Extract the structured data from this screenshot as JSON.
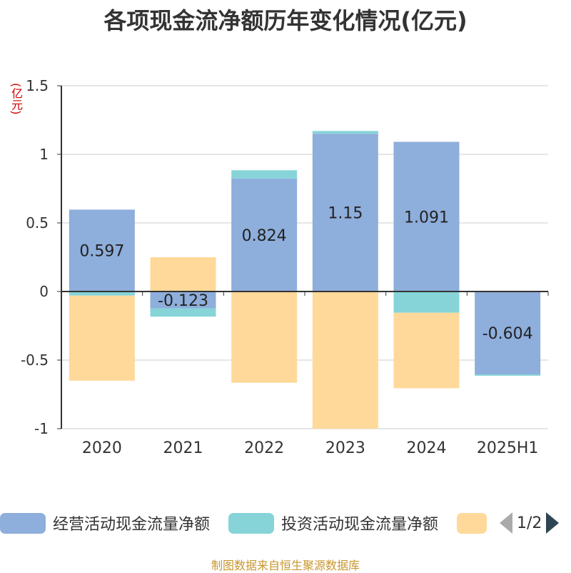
{
  "title": "各项现金流净额历年变化情况(亿元)",
  "unit_label": "(亿元)",
  "source": "制图数据来自恒生聚源数据库",
  "legend": {
    "items": [
      {
        "label": "经营活动现金流量净额",
        "color": "#8eaedb"
      },
      {
        "label": "投资活动现金流量净额",
        "color": "#86d4d8"
      },
      {
        "label": "",
        "color": "#ffd99a"
      }
    ],
    "page": "1/2"
  },
  "chart_data": {
    "type": "bar",
    "stacked": true,
    "categories": [
      "2020",
      "2021",
      "2022",
      "2023",
      "2024",
      "2025H1"
    ],
    "ylim": [
      -1,
      1.5
    ],
    "yticks": [
      "1.5",
      "1",
      "0.5",
      "0",
      "-0.5",
      "-1"
    ],
    "series": [
      {
        "name": "经营活动现金流量净额",
        "color": "#8eaedb",
        "values": [
          0.597,
          -0.123,
          0.824,
          1.15,
          1.091,
          -0.604
        ],
        "labels": [
          "0.597",
          "-0.123",
          "0.824",
          "1.15",
          "1.091",
          "-0.604"
        ]
      },
      {
        "name": "投资活动现金流量净额",
        "color": "#86d4d8",
        "values": [
          -0.03,
          -0.06,
          0.06,
          0.02,
          -0.155,
          -0.01
        ]
      },
      {
        "color": "#ffd99a",
        "values": [
          -0.62,
          0.25,
          -0.665,
          -1.0,
          -0.55,
          0
        ]
      }
    ]
  }
}
